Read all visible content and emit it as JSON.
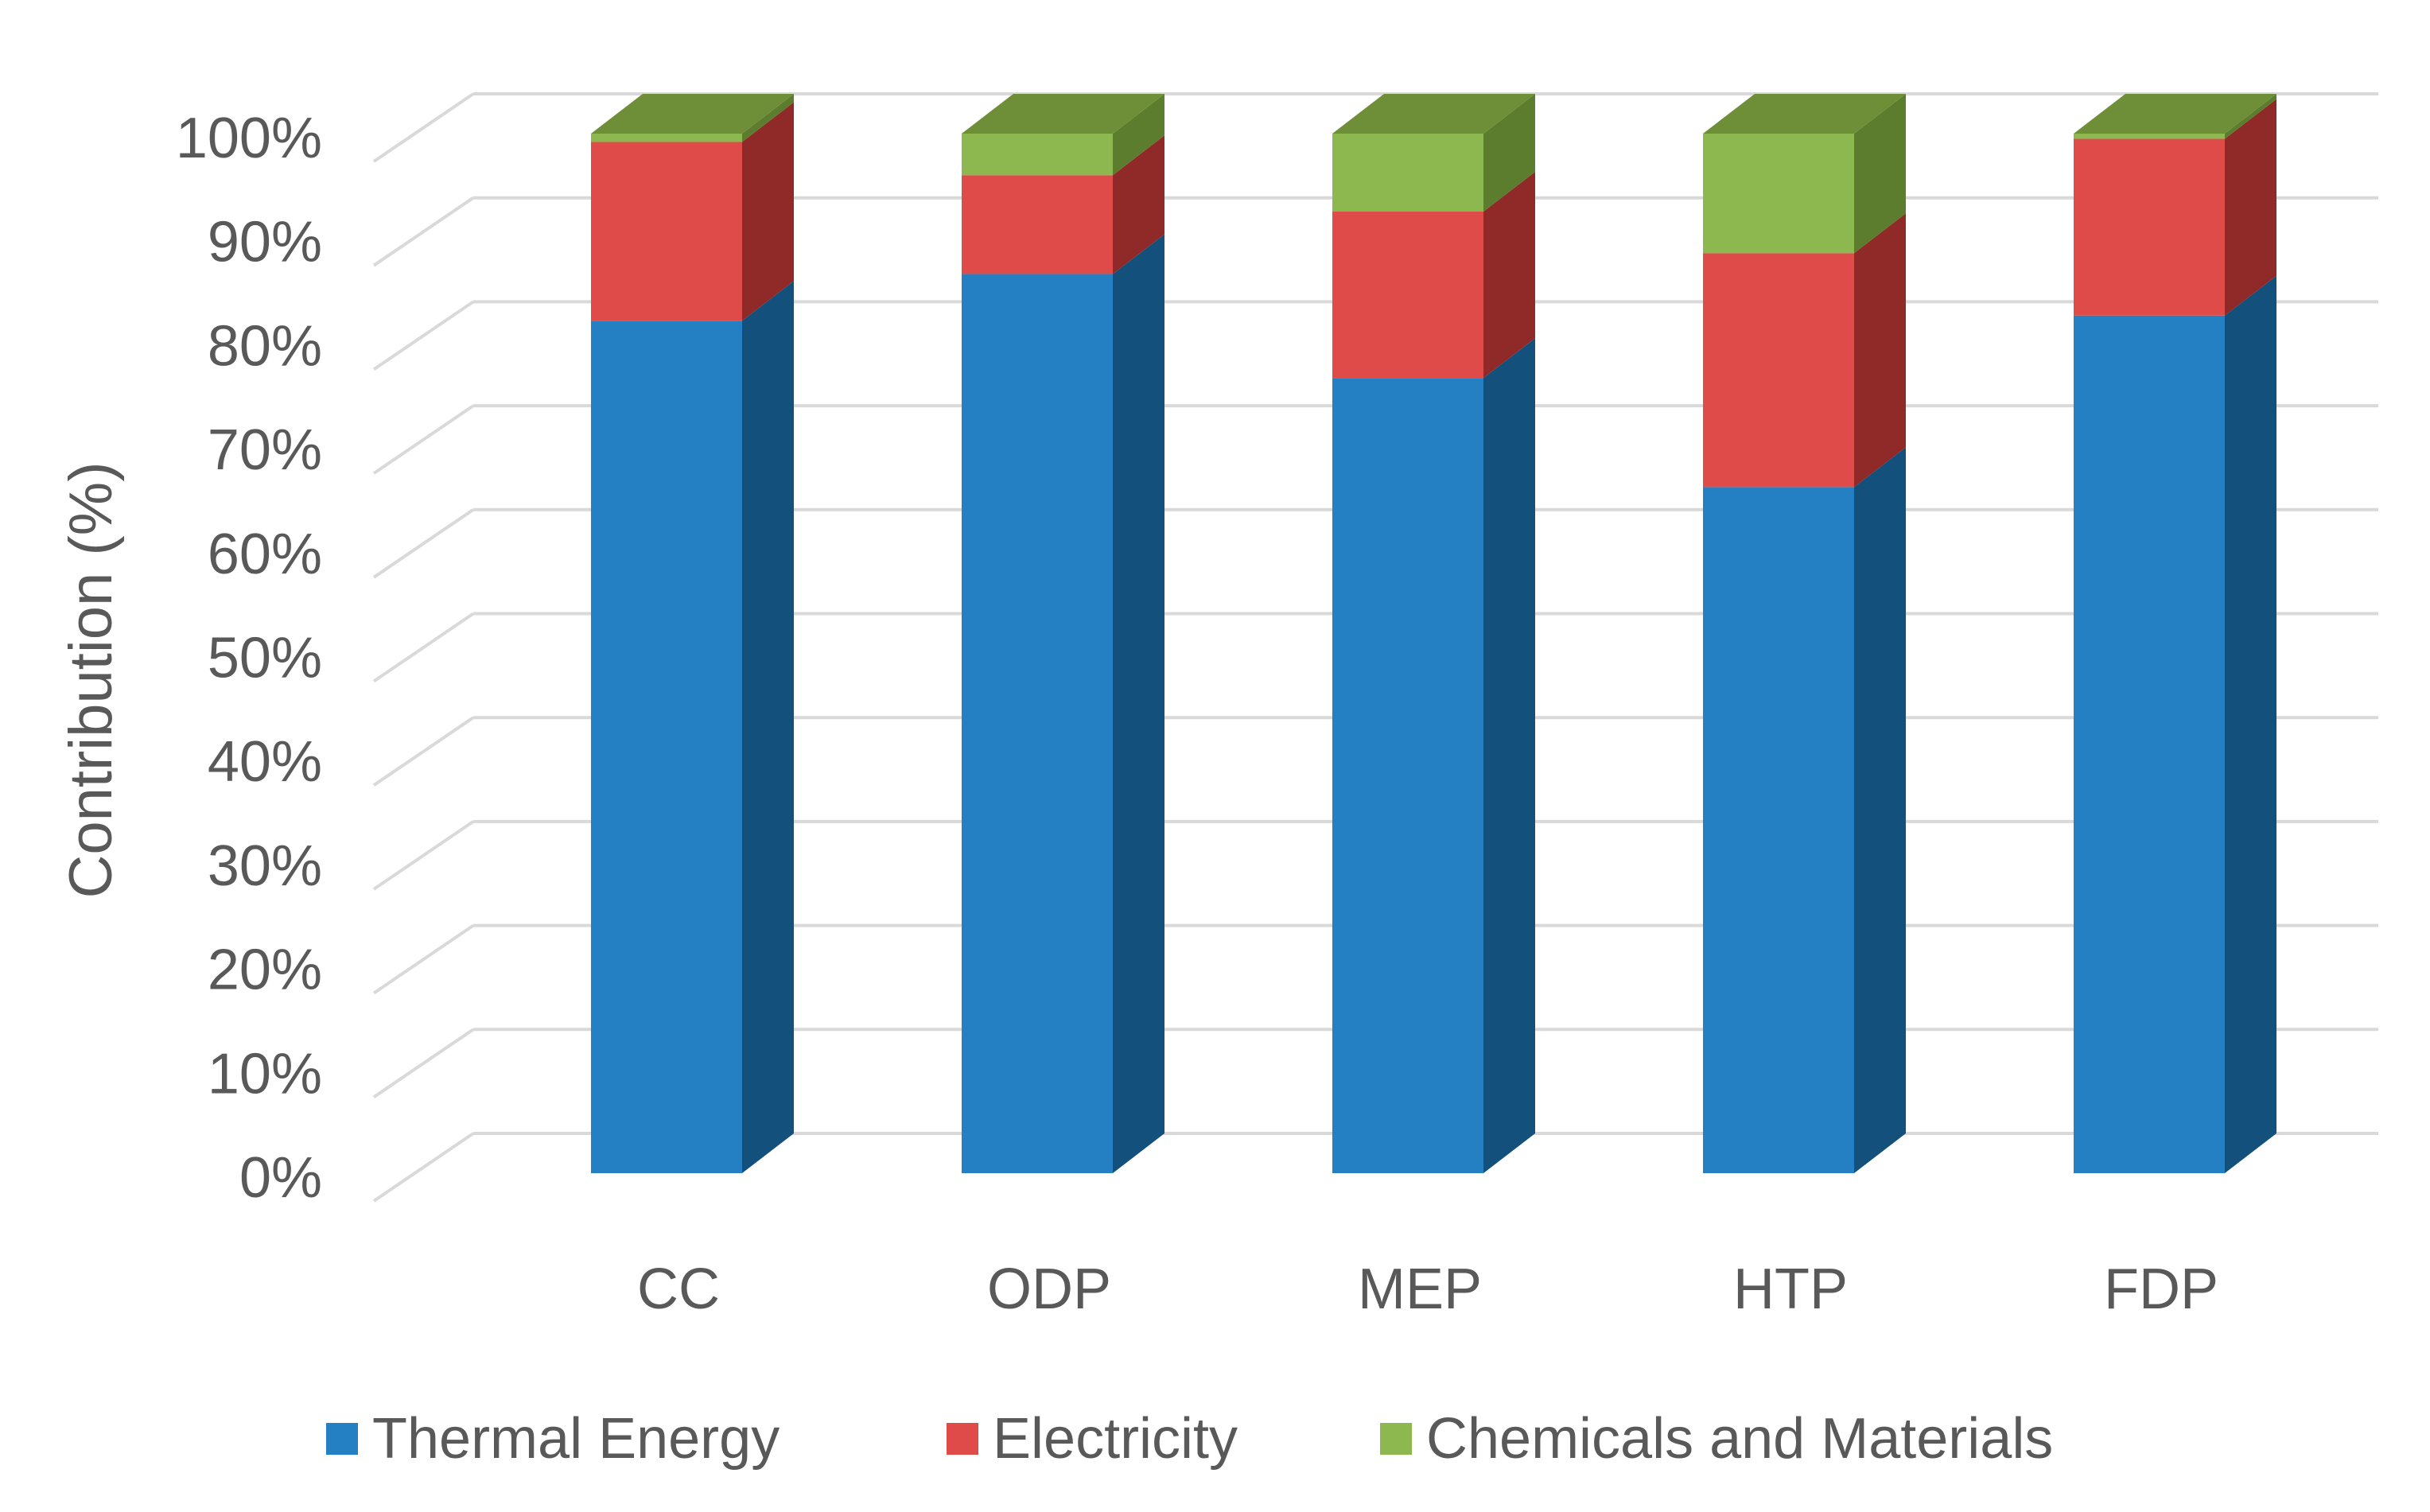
{
  "chart_data": {
    "type": "bar",
    "stacked": true,
    "style": "3d-column",
    "categories": [
      "CC",
      "ODP",
      "MEP",
      "HTP",
      "FDP"
    ],
    "series": [
      {
        "name": "Thermal Energy",
        "values": [
          82,
          86.5,
          76.5,
          66,
          82.5
        ],
        "color": "#2480C2",
        "side_color": "#13507C",
        "top_color": "#1E6BA3"
      },
      {
        "name": "Electricity",
        "values": [
          17.2,
          9.5,
          16,
          22.5,
          17
        ],
        "color": "#DE4B49",
        "side_color": "#8F2A28",
        "top_color": "#C23E3C"
      },
      {
        "name": "Chemicals and Materials",
        "values": [
          0.8,
          4,
          7.5,
          11.5,
          0.5
        ],
        "color": "#8CB84F",
        "side_color": "#5C7D2D",
        "top_color": "#6E8F38"
      }
    ],
    "ylabel": "Contribution (%)",
    "xlabel": "",
    "title": "",
    "ylim": [
      0,
      100
    ],
    "yticks": [
      0,
      10,
      20,
      30,
      40,
      50,
      60,
      70,
      80,
      90,
      100
    ],
    "ytick_labels": [
      "0%",
      "10%",
      "20%",
      "30%",
      "40%",
      "50%",
      "60%",
      "70%",
      "80%",
      "90%",
      "100%"
    ],
    "grid": true,
    "legend_position": "bottom",
    "colors": {
      "grid": "#D9D9D9",
      "text": "#595959"
    }
  }
}
